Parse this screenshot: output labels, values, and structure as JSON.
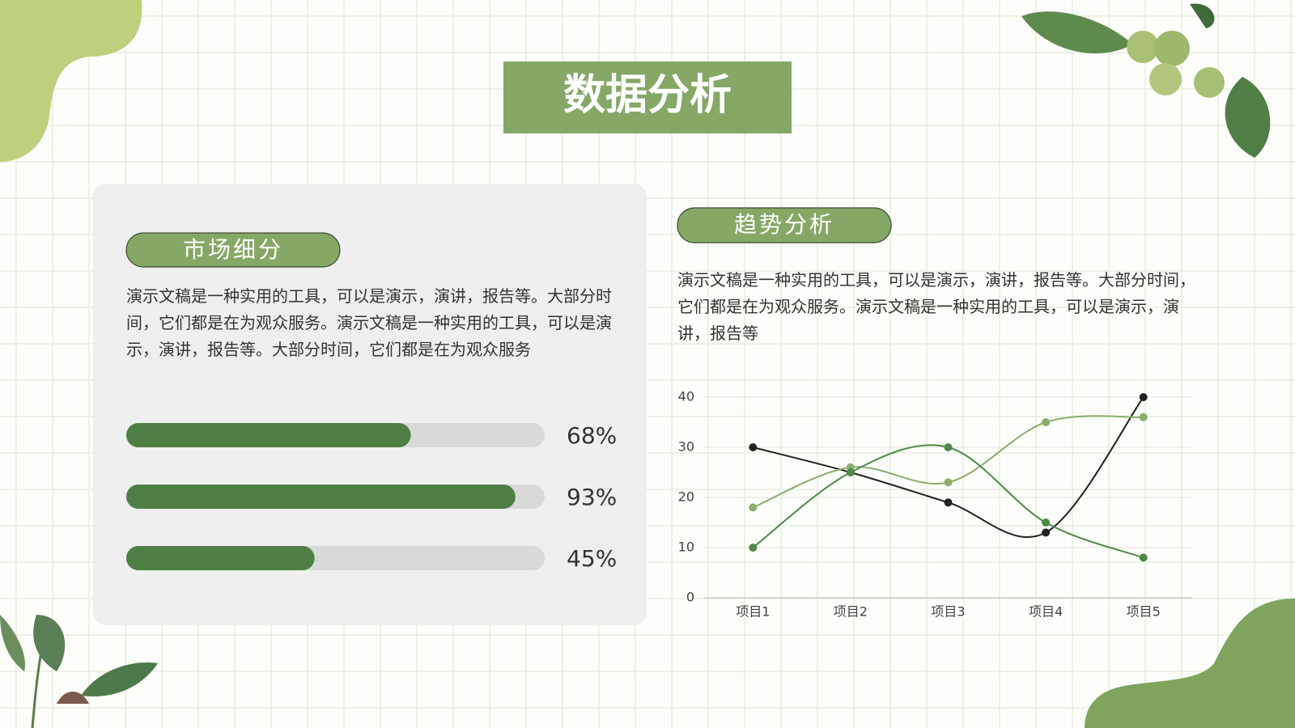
{
  "title": "数据分析",
  "left_panel": {
    "heading": "市场细分",
    "text": "演示文稿是一种实用的工具，可以是演示，演讲，报告等。大部分时间，它们都是在为观众服务。演示文稿是一种实用的工具，可以是演示，演讲，报告等。大部分时间，它们都是在为观众服务",
    "progress": {
      "values": [
        68,
        93,
        45
      ],
      "value_labels": [
        "68%",
        "93%",
        "45%"
      ],
      "xlim": [
        0,
        100
      ],
      "color": "#4e7e44",
      "track_color": "#d9d9d9"
    }
  },
  "right_panel": {
    "heading": "趋势分析",
    "text": "演示文稿是一种实用的工具，可以是演示，演讲，报告等。大部分时间，它们都是在为观众服务。演示文稿是一种实用的工具，可以是演示，演讲，报告等"
  },
  "chart_data": {
    "type": "line",
    "categories": [
      "项目1",
      "项目2",
      "项目3",
      "项目4",
      "项目5"
    ],
    "series": [
      {
        "color": "#222222",
        "values": [
          30,
          25,
          19,
          13,
          40
        ]
      },
      {
        "color": "#8cad6c",
        "values": [
          18,
          26,
          23,
          35,
          36
        ]
      },
      {
        "color": "#4e8a45",
        "values": [
          10,
          25,
          30,
          15,
          8
        ]
      }
    ],
    "ylim": [
      0,
      40
    ],
    "yticks": [
      0,
      10,
      20,
      30,
      40
    ],
    "grid": true,
    "smooth": true
  }
}
